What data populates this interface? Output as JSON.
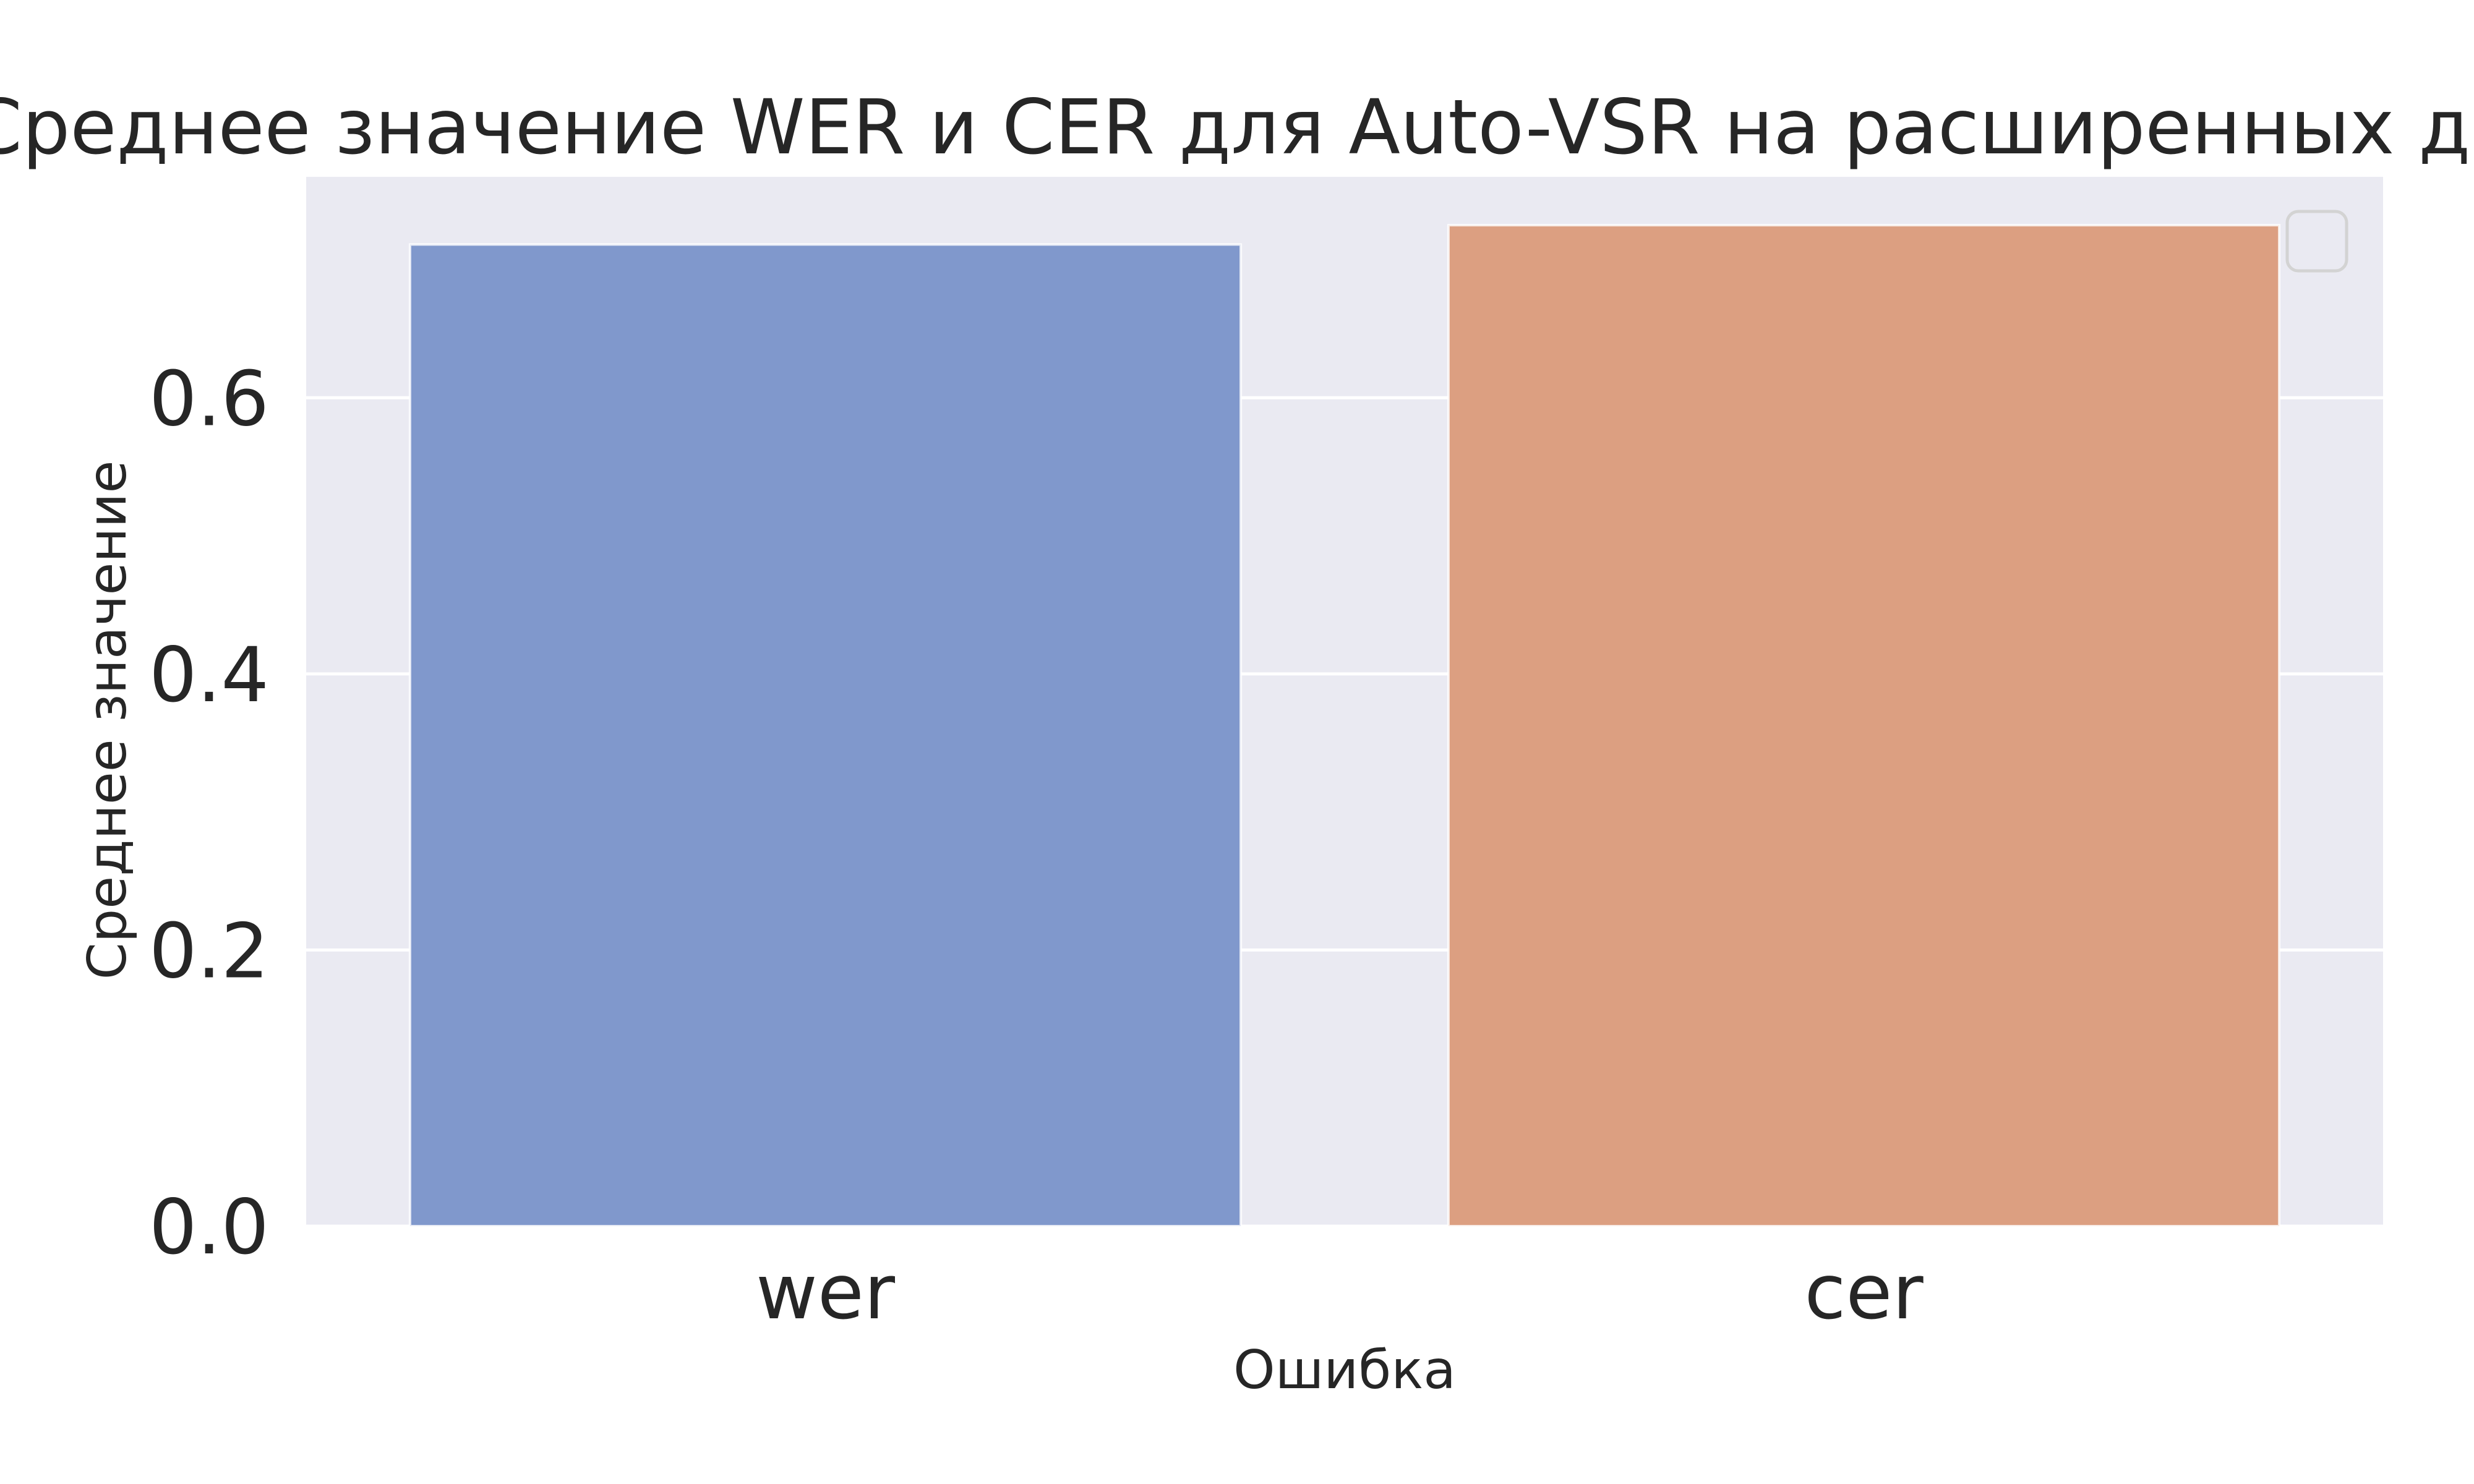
{
  "chart_data": {
    "type": "bar",
    "title": "Среднее значение WER и CER для Auto-VSR на расширенных данных",
    "xlabel": "Ошибка",
    "ylabel": "Среднее значение",
    "categories": [
      "wer",
      "cer"
    ],
    "values": [
      0.711,
      0.725
    ],
    "ylim": [
      0,
      0.76
    ],
    "yticks": [
      "0.0",
      "0.2",
      "0.4",
      "0.6"
    ],
    "grid": true,
    "legend": "top-right",
    "bar_colors": [
      "#8098cc",
      "#dc9f81"
    ],
    "background_color": "#eaeaf2"
  }
}
